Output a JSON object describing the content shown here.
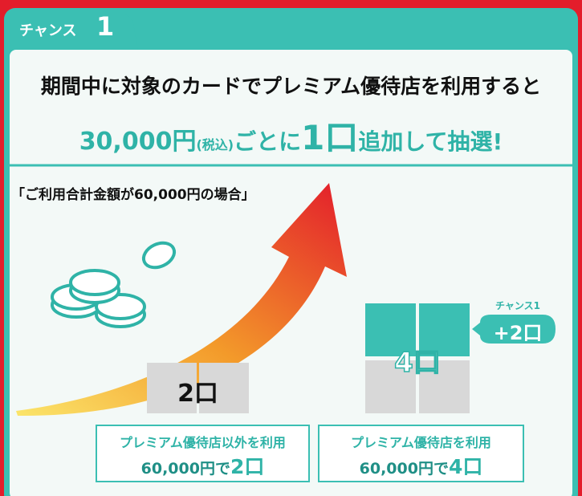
{
  "header": {
    "tab_label": "チャンス",
    "tab_number": "1"
  },
  "headline": "期間中に対象のカードでプレミアム優待店を利用すると",
  "subline": {
    "amount": "30,000円",
    "tax": "(税込)",
    "per": "ごとに",
    "units": "1口",
    "rest": "追加して抽選!"
  },
  "example_note": "「ご利用合計金額が60,000円の場合」",
  "left": {
    "grid_label": "2口",
    "caption_line1": "プレミアム優待店以外を利用",
    "caption_amount": "60,000円で",
    "caption_units": "2口"
  },
  "right": {
    "grid_label": "4口",
    "bubble_title": "チャンス1",
    "bubble_label": "+2口",
    "caption_line1": "プレミアム優待店を利用",
    "caption_amount": "60,000円で",
    "caption_units": "4口"
  }
}
